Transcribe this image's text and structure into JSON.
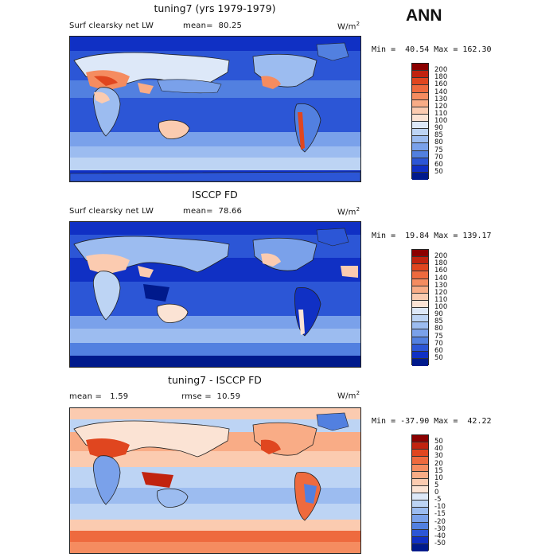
{
  "season": "ANN",
  "panels": [
    {
      "title": "tuning7 (yrs 1979-1979)",
      "field": "Surf clearsky net LW",
      "stat": "mean=  80.25",
      "units": "W/m",
      "units_sup": "2",
      "minmax": "Min =  40.54 Max = 162.30",
      "colorbar": {
        "labels": [
          "200",
          "180",
          "160",
          "140",
          "130",
          "120",
          "110",
          "100",
          "90",
          "85",
          "80",
          "75",
          "70",
          "60",
          "50"
        ],
        "colors": [
          "#8b0000",
          "#c1230f",
          "#e0461f",
          "#ee6a3e",
          "#f58c60",
          "#f9ac86",
          "#fbcbb0",
          "#fbe3d4",
          "#dde8f8",
          "#bdd4f4",
          "#9cbcf0",
          "#7aa1ea",
          "#5280e0",
          "#2c56d6",
          "#1030c4",
          "#001a8c"
        ]
      }
    },
    {
      "title": "ISCCP FD",
      "field": "Surf clearsky net LW",
      "stat": "mean=  78.66",
      "units": "W/m",
      "units_sup": "2",
      "minmax": "Min =  19.84 Max = 139.17",
      "colorbar": {
        "labels": [
          "200",
          "180",
          "160",
          "140",
          "130",
          "120",
          "110",
          "100",
          "90",
          "85",
          "80",
          "75",
          "70",
          "60",
          "50"
        ],
        "colors": [
          "#8b0000",
          "#c1230f",
          "#e0461f",
          "#ee6a3e",
          "#f58c60",
          "#f9ac86",
          "#fbcbb0",
          "#fbe3d4",
          "#dde8f8",
          "#bdd4f4",
          "#9cbcf0",
          "#7aa1ea",
          "#5280e0",
          "#2c56d6",
          "#1030c4",
          "#001a8c"
        ]
      }
    },
    {
      "title": "tuning7 - ISCCP FD",
      "field": "",
      "stat_mean": "mean =   1.59",
      "stat_rmse": "rmse =  10.59",
      "units": "W/m",
      "units_sup": "2",
      "minmax": "Min = -37.90 Max =  42.22",
      "colorbar": {
        "labels": [
          "50",
          "40",
          "30",
          "20",
          "15",
          "10",
          "5",
          "0",
          "-5",
          "-10",
          "-15",
          "-20",
          "-30",
          "-40",
          "-50"
        ],
        "colors": [
          "#8b0000",
          "#c1230f",
          "#e0461f",
          "#ee6a3e",
          "#f58c60",
          "#f9ac86",
          "#fbcbb0",
          "#fbe3d4",
          "#dde8f8",
          "#bdd4f4",
          "#9cbcf0",
          "#7aa1ea",
          "#5280e0",
          "#2c56d6",
          "#1030c4",
          "#001a8c"
        ]
      }
    }
  ]
}
